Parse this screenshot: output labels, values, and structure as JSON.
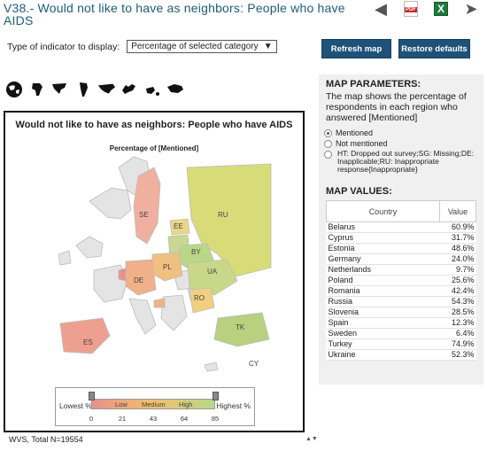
{
  "title": "V38.- Would not like to have as neighbors: People who have AIDS",
  "top_icons": [
    "arrow-left-icon",
    "pdf-icon",
    "excel-icon",
    "arrow-right-icon"
  ],
  "indicator": {
    "label": "Type of indicator to display:",
    "selected": "Percentage of selected category"
  },
  "buttons": {
    "refresh": "Refresh map",
    "restore": "Restore defaults"
  },
  "map": {
    "title": "Would not like to have as neighbors: People who have AIDS",
    "subtitle": "Percentage of [Mentioned]",
    "country_codes": {
      "SE": "SE",
      "RU": "RU",
      "EE": "EE",
      "BY": "BY",
      "PL": "PL",
      "DE": "DE",
      "UA": "UA",
      "RO": "RO",
      "ES": "ES",
      "TK": "TK",
      "CY": "CY"
    }
  },
  "legend": {
    "lowest": "Lowest %",
    "highest": "Highest %",
    "words": [
      "Low",
      "Medium",
      "High"
    ],
    "ticks": [
      "0",
      "21",
      "43",
      "64",
      "85"
    ]
  },
  "footer": "WVS, Total N=19554",
  "side": {
    "params_heading": "MAP PARAMETERS:",
    "params_text": "The map shows the percentage of respondents in each region who answered [Mentioned]",
    "options": [
      "Mentioned",
      "Not mentioned",
      "HT: Dropped out survey;SG: Missing;DE: Inapplicable;RU: Inappropriate response{Inappropriate}"
    ],
    "values_heading": "MAP VALUES:",
    "table_headers": [
      "Country",
      "Value"
    ],
    "rows": [
      {
        "country": "Belarus",
        "value": "60.9%"
      },
      {
        "country": "Cyprus",
        "value": "31.7%"
      },
      {
        "country": "Estonia",
        "value": "48.6%"
      },
      {
        "country": "Germany",
        "value": "24.0%"
      },
      {
        "country": "Netherlands",
        "value": "9.7%"
      },
      {
        "country": "Poland",
        "value": "25.6%"
      },
      {
        "country": "Romania",
        "value": "42.4%"
      },
      {
        "country": "Russia",
        "value": "54.3%"
      },
      {
        "country": "Slovenia",
        "value": "28.5%"
      },
      {
        "country": "Spain",
        "value": "12.3%"
      },
      {
        "country": "Sweden",
        "value": "6.4%"
      },
      {
        "country": "Turkey",
        "value": "74.9%"
      },
      {
        "country": "Ukraine",
        "value": "52.3%"
      }
    ]
  },
  "colors": {
    "title": "#1e5c7a",
    "button": "#1f5278",
    "low": "#e8908a",
    "medium": "#f0c070",
    "high": "#b8d888",
    "russia": "#d8dc78"
  }
}
